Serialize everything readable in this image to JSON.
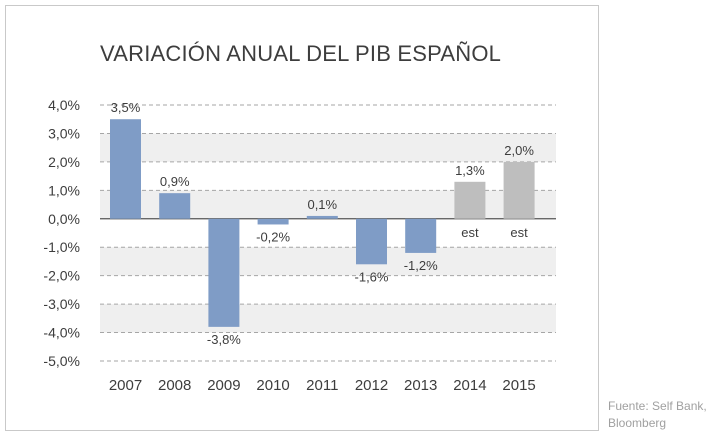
{
  "chart_data": {
    "type": "bar",
    "title": "VARIACIÓN ANUAL DEL PIB ESPAÑOL",
    "categories": [
      "2007",
      "2008",
      "2009",
      "2010",
      "2011",
      "2012",
      "2013",
      "2014",
      "2015"
    ],
    "values": [
      3.5,
      0.9,
      -3.8,
      -0.2,
      0.1,
      -1.6,
      -1.2,
      1.3,
      2.0
    ],
    "value_labels": [
      "3,5%",
      "0,9%",
      "-3,8%",
      "-0,2%",
      "0,1%",
      "-1,6%",
      "-1,2%",
      "1,3%",
      "2,0%"
    ],
    "bar_notes": [
      "",
      "",
      "",
      "",
      "",
      "",
      "",
      "est",
      "est"
    ],
    "estimated": [
      false,
      false,
      false,
      false,
      false,
      false,
      false,
      true,
      true
    ],
    "ylim": [
      -5,
      4
    ],
    "yticks": [
      4,
      3,
      2,
      1,
      0,
      -1,
      -2,
      -3,
      -4,
      -5
    ],
    "ytick_labels": [
      "4,0%",
      "3,0%",
      "2,0%",
      "1,0%",
      "0,0%",
      "-1,0%",
      "-2,0%",
      "-3,0%",
      "-4,0%",
      "-5,0%"
    ],
    "xlabel": "",
    "ylabel": "",
    "grid": true
  },
  "colors": {
    "actual_bar": "#7f9cc6",
    "estimate_bar": "#bebebe",
    "gridline": "#a6a6a6",
    "band_light": "#ffffff",
    "band_shaded": "#efefef"
  },
  "source": {
    "line1": "Fuente: Self Bank,",
    "line2": "Bloomberg"
  }
}
